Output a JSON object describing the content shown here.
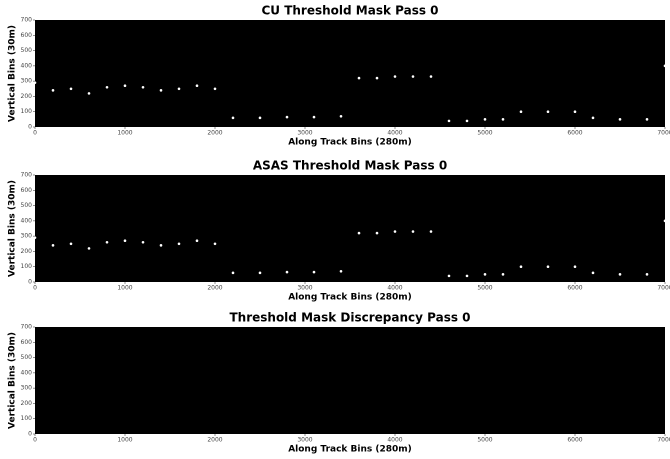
{
  "chart_data": [
    {
      "type": "scatter",
      "title": "CU Threshold Mask Pass 0",
      "xlabel": "Along Track Bins (280m)",
      "ylabel": "Vertical Bins (30m)",
      "xlim": [
        0,
        7000
      ],
      "ylim": [
        0,
        700
      ],
      "xticks": [
        0,
        1000,
        2000,
        3000,
        4000,
        5000,
        6000,
        7000
      ],
      "yticks": [
        0,
        100,
        200,
        300,
        400,
        500,
        600,
        700
      ],
      "background": "#000000",
      "color": "#ffffff",
      "x": [
        0,
        200,
        400,
        600,
        800,
        1000,
        1200,
        1400,
        1600,
        1800,
        2000,
        2200,
        2500,
        2800,
        3100,
        3400,
        3600,
        3800,
        4000,
        4200,
        4400,
        4600,
        4800,
        5000,
        5200,
        5400,
        5700,
        6000,
        6200,
        6500,
        6800,
        7000
      ],
      "y": [
        290,
        240,
        250,
        220,
        260,
        270,
        260,
        240,
        250,
        270,
        250,
        60,
        60,
        65,
        65,
        70,
        320,
        320,
        330,
        330,
        330,
        40,
        40,
        50,
        50,
        100,
        100,
        100,
        60,
        50,
        50,
        400
      ]
    },
    {
      "type": "scatter",
      "title": "ASAS Threshold Mask Pass 0",
      "xlabel": "Along Track Bins (280m)",
      "ylabel": "Vertical Bins (30m)",
      "xlim": [
        0,
        7000
      ],
      "ylim": [
        0,
        700
      ],
      "xticks": [
        0,
        1000,
        2000,
        3000,
        4000,
        5000,
        6000,
        7000
      ],
      "yticks": [
        0,
        100,
        200,
        300,
        400,
        500,
        600,
        700
      ],
      "background": "#000000",
      "color": "#ffffff",
      "x": [
        0,
        200,
        400,
        600,
        800,
        1000,
        1200,
        1400,
        1600,
        1800,
        2000,
        2200,
        2500,
        2800,
        3100,
        3400,
        3600,
        3800,
        4000,
        4200,
        4400,
        4600,
        4800,
        5000,
        5200,
        5400,
        5700,
        6000,
        6200,
        6500,
        6800,
        7000
      ],
      "y": [
        290,
        240,
        250,
        220,
        260,
        270,
        260,
        240,
        250,
        270,
        250,
        60,
        60,
        65,
        65,
        70,
        320,
        320,
        330,
        330,
        330,
        40,
        40,
        50,
        50,
        100,
        100,
        100,
        60,
        50,
        50,
        400
      ]
    },
    {
      "type": "scatter",
      "title": "Threshold Mask Discrepancy Pass 0",
      "xlabel": "Along Track Bins (280m)",
      "ylabel": "Vertical Bins (30m)",
      "xlim": [
        0,
        7000
      ],
      "ylim": [
        0,
        700
      ],
      "xticks": [
        0,
        1000,
        2000,
        3000,
        4000,
        5000,
        6000,
        7000
      ],
      "yticks": [
        0,
        100,
        200,
        300,
        400,
        500,
        600,
        700
      ],
      "background": "#000000",
      "color": "#ffffff"
    }
  ]
}
